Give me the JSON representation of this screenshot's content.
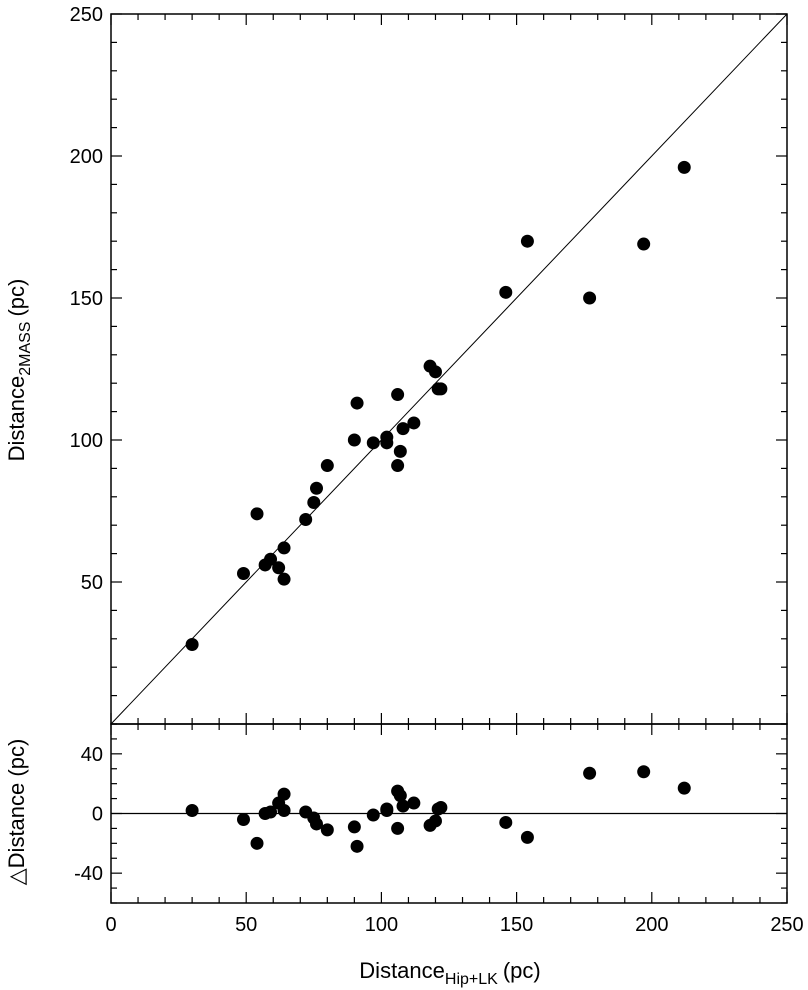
{
  "chart_data": [
    {
      "panel": "top",
      "type": "scatter",
      "xlim": [
        0,
        250
      ],
      "ylim": [
        0,
        250
      ],
      "x_ticks": [
        0,
        50,
        100,
        150,
        200,
        250
      ],
      "y_ticks": [
        50,
        100,
        150,
        200,
        250
      ],
      "y_tick_labels": [
        "50",
        "100",
        "150",
        "200",
        "250"
      ],
      "ylabel": "Distance",
      "ylabel_sub": "2MASS",
      "ylabel_unit": "(pc)",
      "reference_line": "y = x",
      "points": [
        {
          "x": 30,
          "y": 28
        },
        {
          "x": 49,
          "y": 53
        },
        {
          "x": 54,
          "y": 74
        },
        {
          "x": 57,
          "y": 56
        },
        {
          "x": 59,
          "y": 58
        },
        {
          "x": 62,
          "y": 55
        },
        {
          "x": 64,
          "y": 51
        },
        {
          "x": 64,
          "y": 62
        },
        {
          "x": 72,
          "y": 72
        },
        {
          "x": 75,
          "y": 78
        },
        {
          "x": 76,
          "y": 83
        },
        {
          "x": 80,
          "y": 91
        },
        {
          "x": 90,
          "y": 100
        },
        {
          "x": 91,
          "y": 113
        },
        {
          "x": 97,
          "y": 99
        },
        {
          "x": 102,
          "y": 99
        },
        {
          "x": 102,
          "y": 101
        },
        {
          "x": 106,
          "y": 91
        },
        {
          "x": 106,
          "y": 116
        },
        {
          "x": 107,
          "y": 96
        },
        {
          "x": 108,
          "y": 104
        },
        {
          "x": 112,
          "y": 106
        },
        {
          "x": 118,
          "y": 126
        },
        {
          "x": 120,
          "y": 124
        },
        {
          "x": 121,
          "y": 118
        },
        {
          "x": 122,
          "y": 118
        },
        {
          "x": 146,
          "y": 152
        },
        {
          "x": 154,
          "y": 170
        },
        {
          "x": 177,
          "y": 150
        },
        {
          "x": 197,
          "y": 169
        },
        {
          "x": 212,
          "y": 196
        }
      ]
    },
    {
      "panel": "bottom",
      "type": "scatter",
      "xlim": [
        0,
        250
      ],
      "ylim": [
        -60,
        60
      ],
      "x_ticks": [
        0,
        50,
        100,
        150,
        200,
        250
      ],
      "x_tick_labels": [
        "0",
        "50",
        "100",
        "150",
        "200",
        "250"
      ],
      "y_ticks": [
        -40,
        0,
        40
      ],
      "y_tick_labels": [
        "-40",
        "0",
        "40"
      ],
      "xlabel": "Distance",
      "xlabel_sub": "Hip+LK",
      "xlabel_unit": "(pc)",
      "ylabel_symbol": "△",
      "ylabel": "Distance (pc)",
      "reference_line": "y = 0",
      "points": [
        {
          "x": 30,
          "y": 2
        },
        {
          "x": 49,
          "y": -4
        },
        {
          "x": 54,
          "y": -20
        },
        {
          "x": 57,
          "y": 0
        },
        {
          "x": 59,
          "y": 1
        },
        {
          "x": 62,
          "y": 7
        },
        {
          "x": 64,
          "y": 2
        },
        {
          "x": 64,
          "y": 13
        },
        {
          "x": 72,
          "y": 1
        },
        {
          "x": 75,
          "y": -3
        },
        {
          "x": 76,
          "y": -7
        },
        {
          "x": 80,
          "y": -11
        },
        {
          "x": 90,
          "y": -9
        },
        {
          "x": 91,
          "y": -22
        },
        {
          "x": 97,
          "y": -1
        },
        {
          "x": 102,
          "y": 3
        },
        {
          "x": 102,
          "y": 2
        },
        {
          "x": 106,
          "y": 15
        },
        {
          "x": 106,
          "y": -10
        },
        {
          "x": 107,
          "y": 12
        },
        {
          "x": 108,
          "y": 5
        },
        {
          "x": 112,
          "y": 7
        },
        {
          "x": 118,
          "y": -8
        },
        {
          "x": 120,
          "y": -5
        },
        {
          "x": 121,
          "y": 3
        },
        {
          "x": 122,
          "y": 4
        },
        {
          "x": 146,
          "y": -6
        },
        {
          "x": 154,
          "y": -16
        },
        {
          "x": 177,
          "y": 27
        },
        {
          "x": 197,
          "y": 28
        },
        {
          "x": 212,
          "y": 17
        }
      ]
    }
  ],
  "colors": {
    "marker": "#000000",
    "line": "#000000",
    "background": "#ffffff"
  }
}
